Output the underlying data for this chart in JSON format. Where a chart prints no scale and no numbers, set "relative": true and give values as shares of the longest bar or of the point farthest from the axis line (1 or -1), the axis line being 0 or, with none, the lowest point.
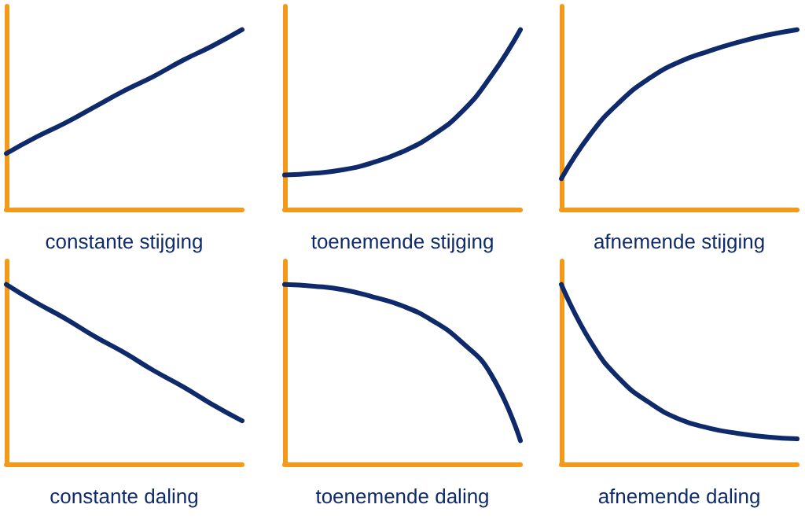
{
  "chart_data": [
    {
      "type": "line",
      "relative": true,
      "xlabel": "constante stijging",
      "categories": [
        null,
        null,
        null,
        null,
        null,
        null,
        null,
        null,
        null
      ],
      "series": [
        {
          "color": "#0f2a6b",
          "values": [
            0.31,
            0.4,
            0.48,
            0.57,
            0.66,
            0.74,
            0.83,
            0.91,
            1
          ]
        }
      ]
    },
    {
      "type": "line",
      "relative": true,
      "xlabel": "toenemende stijging",
      "categories": [
        null,
        null,
        null,
        null,
        null,
        null,
        null,
        null,
        null
      ],
      "series": [
        {
          "color": "#0f2a6b",
          "values": [
            0.19,
            0.2,
            0.22,
            0.26,
            0.32,
            0.41,
            0.54,
            0.74,
            1
          ]
        }
      ]
    },
    {
      "type": "line",
      "relative": true,
      "xlabel": "afnemende stijging",
      "categories": [
        null,
        null,
        null,
        null,
        null,
        null,
        null,
        null,
        null
      ],
      "series": [
        {
          "color": "#0f2a6b",
          "values": [
            0.17,
            0.42,
            0.6,
            0.73,
            0.82,
            0.88,
            0.93,
            0.97,
            1
          ]
        }
      ]
    },
    {
      "type": "line",
      "relative": true,
      "xlabel": "constante daling",
      "categories": [
        null,
        null,
        null,
        null,
        null,
        null,
        null,
        null,
        null
      ],
      "series": [
        {
          "color": "#0f2a6b",
          "values": [
            1,
            0.9,
            0.81,
            0.71,
            0.62,
            0.52,
            0.43,
            0.33,
            0.24
          ]
        }
      ]
    },
    {
      "type": "line",
      "relative": true,
      "xlabel": "toenemende daling",
      "categories": [
        null,
        null,
        null,
        null,
        null,
        null,
        null,
        null,
        null
      ],
      "series": [
        {
          "color": "#0f2a6b",
          "values": [
            1,
            0.99,
            0.97,
            0.93,
            0.88,
            0.8,
            0.68,
            0.5,
            0.13
          ]
        }
      ]
    },
    {
      "type": "line",
      "relative": true,
      "xlabel": "afnemende daling",
      "categories": [
        null,
        null,
        null,
        null,
        null,
        null,
        null,
        null,
        null
      ],
      "series": [
        {
          "color": "#0f2a6b",
          "values": [
            1,
            0.68,
            0.47,
            0.34,
            0.25,
            0.2,
            0.17,
            0.15,
            0.14
          ]
        }
      ]
    }
  ]
}
